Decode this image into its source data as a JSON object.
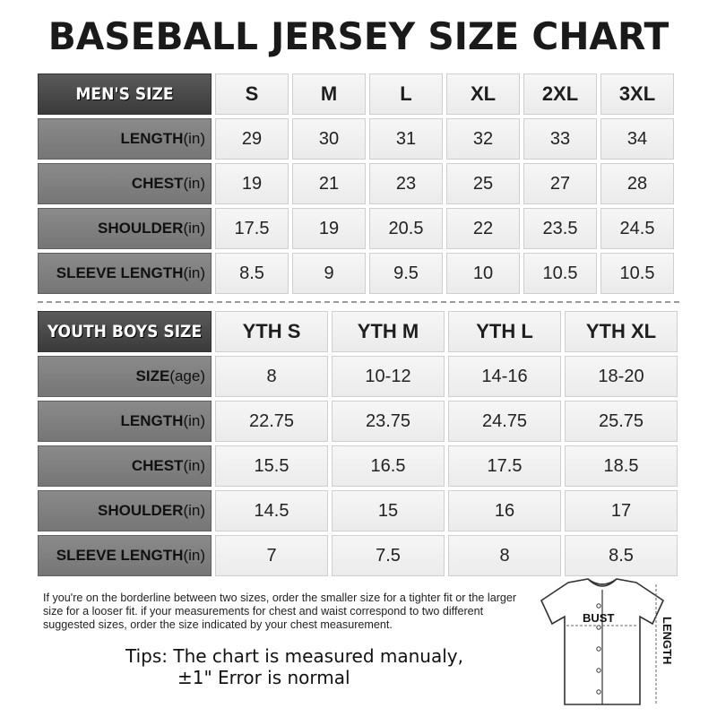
{
  "title": "BASEBALL JERSEY SIZE CHART",
  "men": {
    "corner": "MEN'S SIZE",
    "sizes": [
      "S",
      "M",
      "L",
      "XL",
      "2XL",
      "3XL"
    ],
    "rows": [
      {
        "label": "LENGTH",
        "unit": "(in)",
        "values": [
          "29",
          "30",
          "31",
          "32",
          "33",
          "34"
        ]
      },
      {
        "label": "CHEST",
        "unit": "(in)",
        "values": [
          "19",
          "21",
          "23",
          "25",
          "27",
          "28"
        ]
      },
      {
        "label": "SHOULDER",
        "unit": "(in)",
        "values": [
          "17.5",
          "19",
          "20.5",
          "22",
          "23.5",
          "24.5"
        ]
      },
      {
        "label": "SLEEVE LENGTH",
        "unit": "(in)",
        "values": [
          "8.5",
          "9",
          "9.5",
          "10",
          "10.5",
          "10.5"
        ]
      }
    ]
  },
  "youth": {
    "corner": "YOUTH BOYS SIZE",
    "sizes": [
      "YTH S",
      "YTH M",
      "YTH L",
      "YTH XL"
    ],
    "rows": [
      {
        "label": "SIZE",
        "unit": "(age)",
        "values": [
          "8",
          "10-12",
          "14-16",
          "18-20"
        ]
      },
      {
        "label": "LENGTH",
        "unit": "(in)",
        "values": [
          "22.75",
          "23.75",
          "24.75",
          "25.75"
        ]
      },
      {
        "label": "CHEST",
        "unit": "(in)",
        "values": [
          "15.5",
          "16.5",
          "17.5",
          "18.5"
        ]
      },
      {
        "label": "SHOULDER",
        "unit": "(in)",
        "values": [
          "14.5",
          "15",
          "16",
          "17"
        ]
      },
      {
        "label": "SLEEVE LENGTH",
        "unit": "(in)",
        "values": [
          "7",
          "7.5",
          "8",
          "8.5"
        ]
      }
    ]
  },
  "note": "If you're on the borderline between two sizes, order the smaller size for a tighter fit or the larger size for a looser fit. if your measurements for chest and waist correspond to two different suggested sizes, order the size indicated by your chest measurement.",
  "tips": {
    "line1": "Tips: The chart is measured manualy,",
    "line2": "±1\" Error is normal"
  },
  "diagram": {
    "bust_label": "BUST",
    "length_label": "LENGTH"
  },
  "colors": {
    "corner_bg": "#3f3f3f",
    "label_bg": "#7f7f7f",
    "cell_bg": "#f0f0f0"
  }
}
